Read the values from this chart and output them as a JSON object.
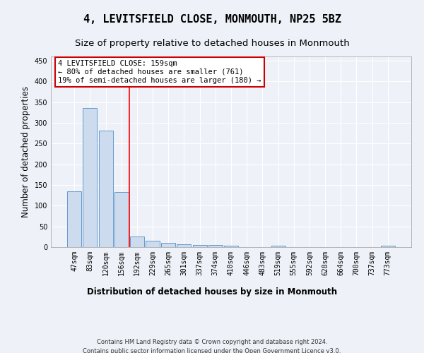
{
  "title": "4, LEVITSFIELD CLOSE, MONMOUTH, NP25 5BZ",
  "subtitle": "Size of property relative to detached houses in Monmouth",
  "xlabel": "Distribution of detached houses by size in Monmouth",
  "ylabel": "Number of detached properties",
  "categories": [
    "47sqm",
    "83sqm",
    "120sqm",
    "156sqm",
    "192sqm",
    "229sqm",
    "265sqm",
    "301sqm",
    "337sqm",
    "374sqm",
    "410sqm",
    "446sqm",
    "483sqm",
    "519sqm",
    "555sqm",
    "592sqm",
    "628sqm",
    "664sqm",
    "700sqm",
    "737sqm",
    "773sqm"
  ],
  "values": [
    134,
    335,
    281,
    133,
    26,
    15,
    11,
    7,
    5,
    5,
    4,
    0,
    0,
    4,
    0,
    0,
    0,
    0,
    0,
    0,
    3
  ],
  "bar_color": "#ccdcee",
  "bar_edge_color": "#6699cc",
  "red_line_x": 3.5,
  "annotation_text": "4 LEVITSFIELD CLOSE: 159sqm\n← 80% of detached houses are smaller (761)\n19% of semi-detached houses are larger (180) →",
  "annotation_box_color": "#ffffff",
  "annotation_box_edge_color": "#cc0000",
  "footnote1": "Contains HM Land Registry data © Crown copyright and database right 2024.",
  "footnote2": "Contains public sector information licensed under the Open Government Licence v3.0.",
  "ylim": [
    0,
    460
  ],
  "bg_color": "#eef2f8",
  "grid_color": "#ffffff",
  "title_fontsize": 11,
  "subtitle_fontsize": 9.5,
  "axis_label_fontsize": 8.5,
  "tick_fontsize": 7,
  "annotation_fontsize": 7.5,
  "footnote_fontsize": 6
}
